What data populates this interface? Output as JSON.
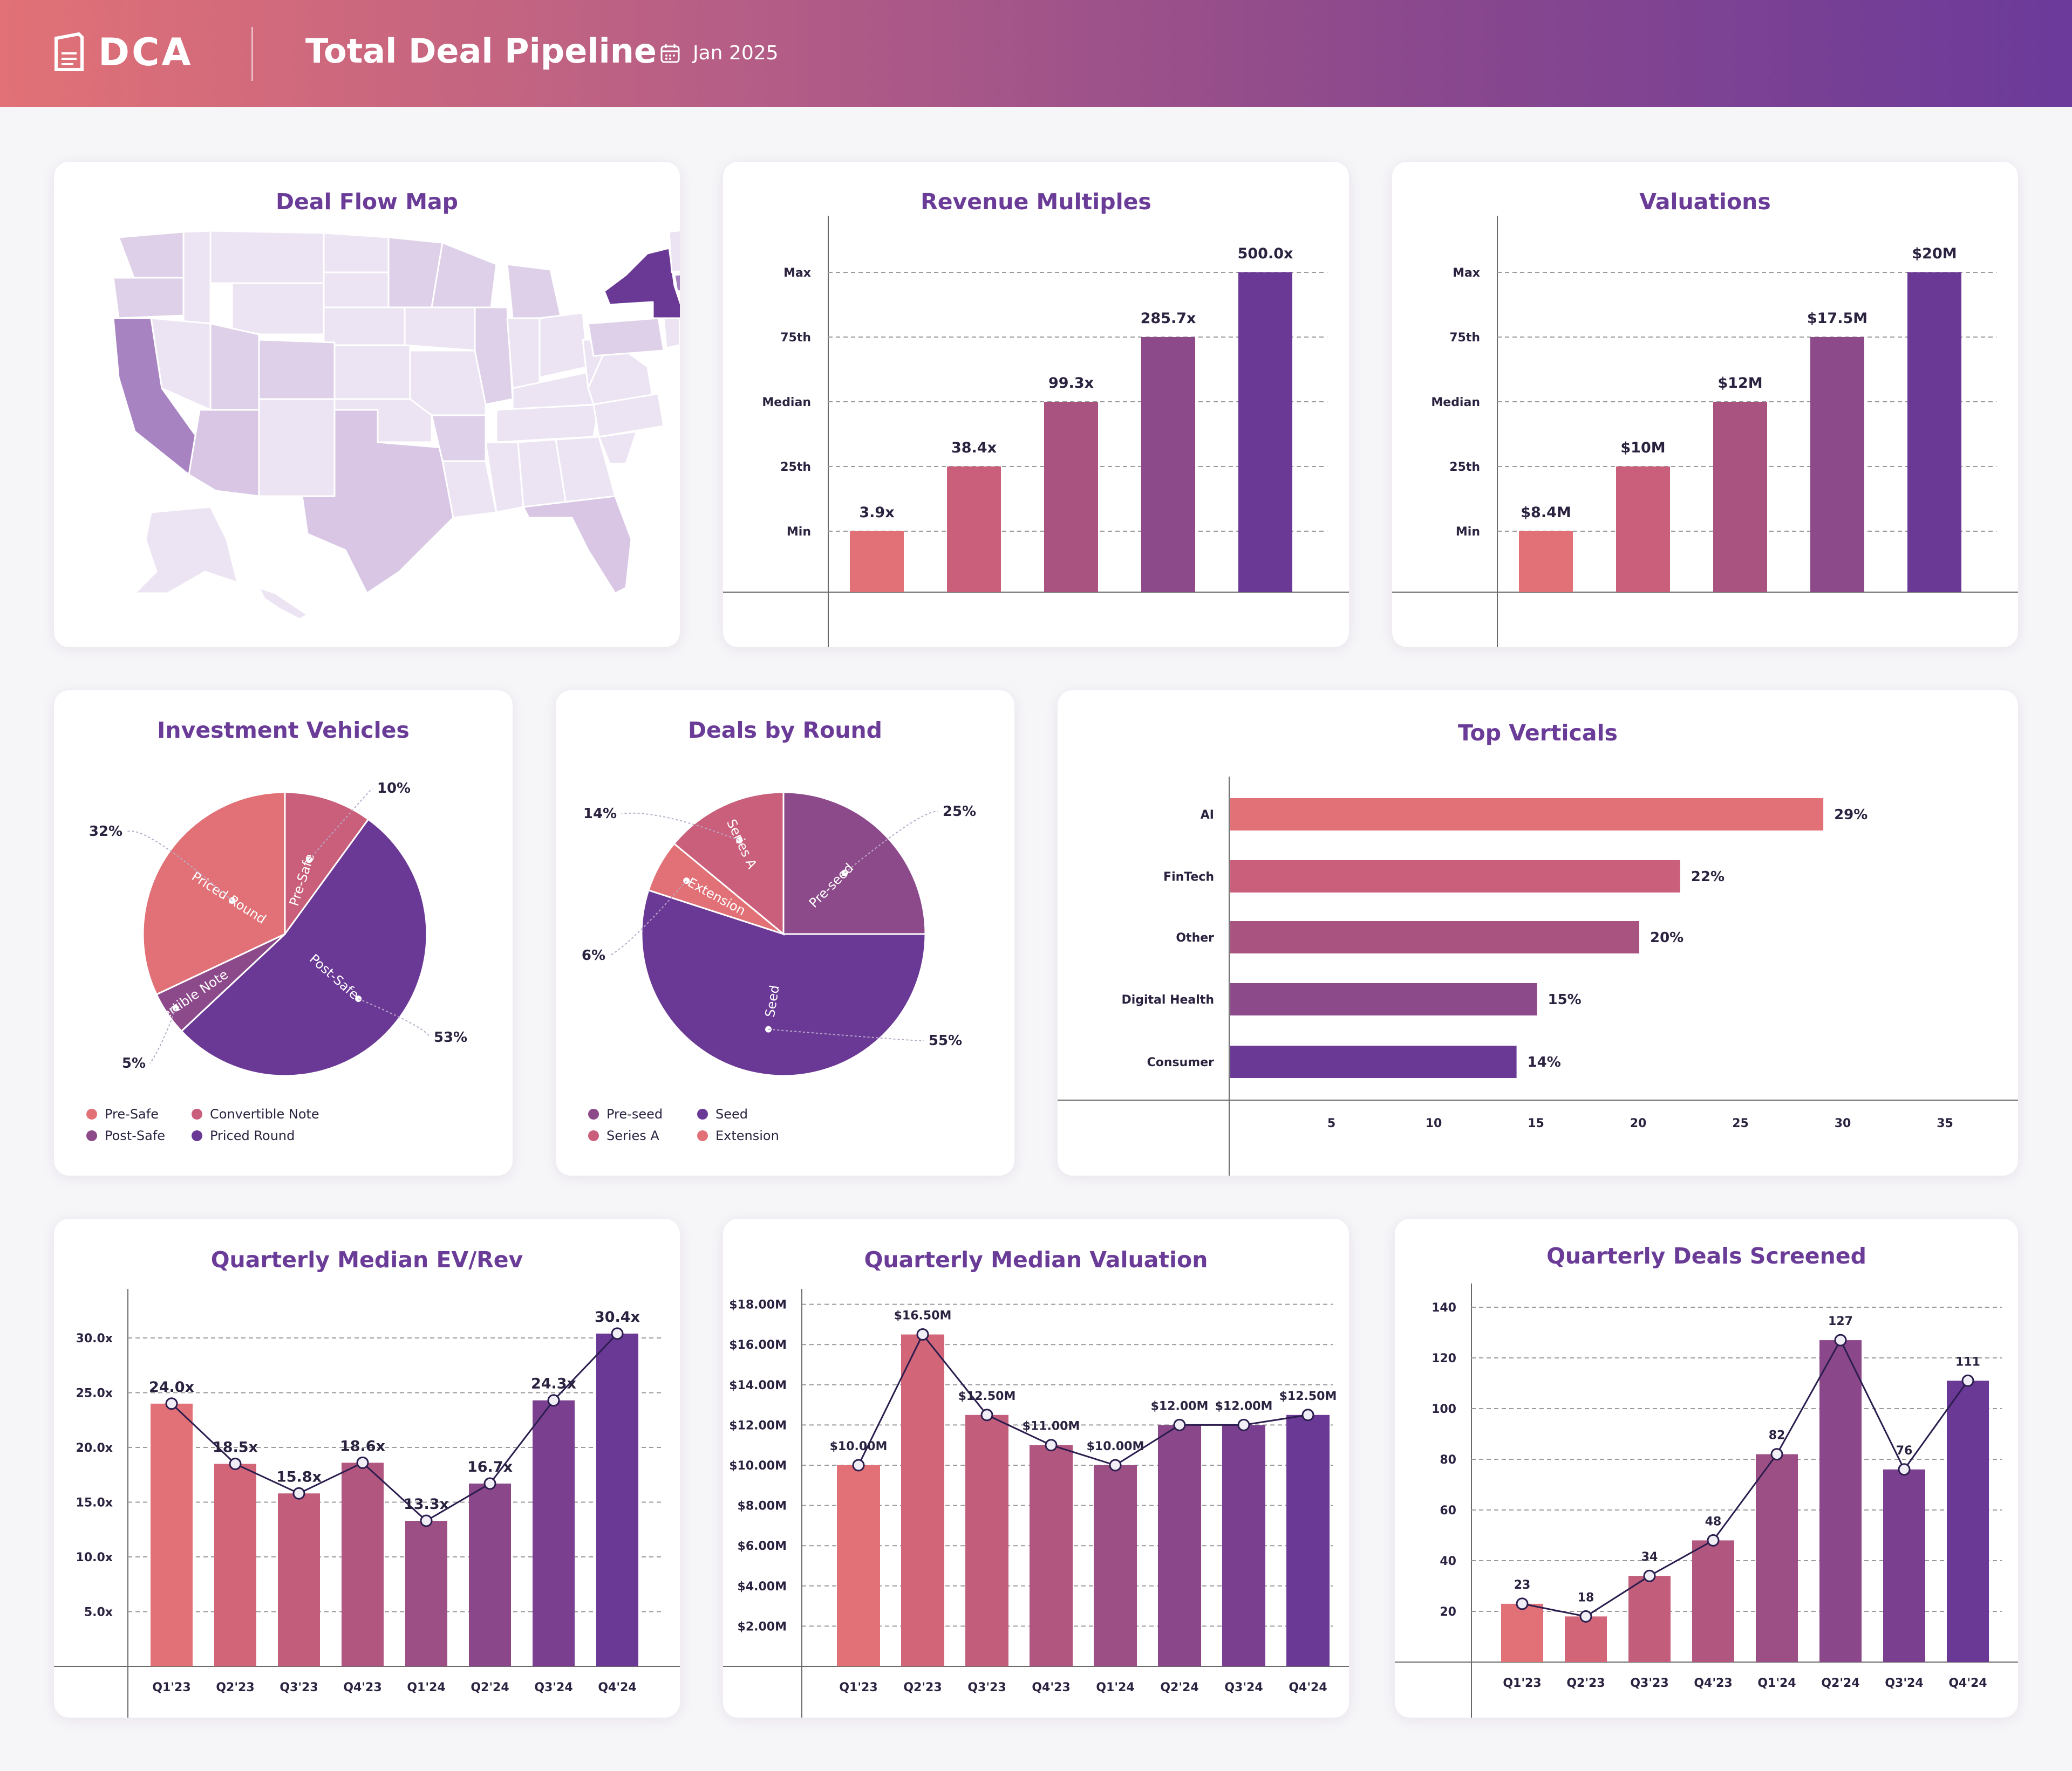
{
  "header": {
    "logo_text": "DCA",
    "title": "Total Deal Pipeline",
    "date": "Jan 2025"
  },
  "colors": {
    "c1": "#e17176",
    "c2": "#c95f7a",
    "c3": "#a85380",
    "c4": "#8c4a8a",
    "c5": "#6a3895",
    "map_dark": "#6a3895",
    "map_mid": "#a783c2",
    "map_light": "#d8c6e4",
    "map_pale": "#ece4f2"
  },
  "map_card": {
    "title": "Deal Flow Map"
  },
  "revenue_multiples": {
    "title": "Revenue Multiples",
    "chart_data": {
      "type": "bar",
      "categories": [
        "Min",
        "25th",
        "Median",
        "75th",
        "Max"
      ],
      "values": [
        3.9,
        38.4,
        99.3,
        285.7,
        500.0
      ],
      "labels": [
        "3.9x",
        "38.4x",
        "99.3x",
        "285.7x",
        "500.0x"
      ]
    }
  },
  "valuations": {
    "title": "Valuations",
    "chart_data": {
      "type": "bar",
      "categories": [
        "Min",
        "25th",
        "Median",
        "75th",
        "Max"
      ],
      "values": [
        8.4,
        10,
        12,
        17.5,
        20
      ],
      "labels": [
        "$8.4M",
        "$10M",
        "$12M",
        "$17.5M",
        "$20M"
      ]
    }
  },
  "investment_vehicles": {
    "title": "Investment Vehicles",
    "chart_data": {
      "type": "pie",
      "slices": [
        {
          "name": "Pre-Safe",
          "value": 10,
          "label": "10%"
        },
        {
          "name": "Post-Safe",
          "value": 53,
          "label": "53%"
        },
        {
          "name": "Convertible Note",
          "value": 5,
          "label": "5%"
        },
        {
          "name": "Priced Round",
          "value": 32,
          "label": "32%"
        }
      ]
    },
    "legend": [
      "Pre-Safe",
      "Convertible Note",
      "Post-Safe",
      "Priced Round"
    ]
  },
  "deals_by_round": {
    "title": "Deals by Round",
    "chart_data": {
      "type": "pie",
      "slices": [
        {
          "name": "Pre-seed",
          "value": 25,
          "label": "25%"
        },
        {
          "name": "Seed",
          "value": 55,
          "label": "55%"
        },
        {
          "name": "Extension",
          "value": 6,
          "label": "6%"
        },
        {
          "name": "Series A",
          "value": 14,
          "label": "14%"
        }
      ]
    },
    "legend": [
      "Pre-seed",
      "Seed",
      "Series A",
      "Extension"
    ]
  },
  "top_verticals": {
    "title": "Top Verticals",
    "chart_data": {
      "type": "bar",
      "orientation": "horizontal",
      "categories": [
        "AI",
        "FinTech",
        "Other",
        "Digital Health",
        "Consumer"
      ],
      "values": [
        29,
        22,
        20,
        15,
        14
      ],
      "labels": [
        "29%",
        "22%",
        "20%",
        "15%",
        "14%"
      ],
      "x_ticks": [
        "5",
        "10",
        "15",
        "20",
        "25",
        "30",
        "35"
      ],
      "xlim": [
        0,
        38
      ]
    }
  },
  "ev_rev": {
    "title": "Quarterly Median EV/Rev",
    "chart_data": {
      "type": "bar",
      "categories": [
        "Q1'23",
        "Q2'23",
        "Q3'23",
        "Q4'23",
        "Q1'24",
        "Q2'24",
        "Q3'24",
        "Q4'24"
      ],
      "values": [
        24.0,
        18.5,
        15.8,
        18.6,
        13.3,
        16.7,
        24.3,
        30.4
      ],
      "labels": [
        "24.0x",
        "18.5x",
        "15.8x",
        "18.6x",
        "13.3x",
        "16.7x",
        "24.3x",
        "30.4x"
      ],
      "y_ticks": [
        "5.0x",
        "10.0x",
        "15.0x",
        "20.0x",
        "25.0x",
        "30.0x"
      ],
      "ylim": [
        0,
        33
      ]
    }
  },
  "median_valuation": {
    "title": "Quarterly Median Valuation",
    "chart_data": {
      "type": "bar",
      "categories": [
        "Q1'23",
        "Q2'23",
        "Q3'23",
        "Q4'23",
        "Q1'24",
        "Q2'24",
        "Q3'24",
        "Q4'24"
      ],
      "values": [
        10.0,
        16.5,
        12.5,
        11.0,
        10.0,
        12.0,
        12.0,
        12.5
      ],
      "labels": [
        "$10.00M",
        "$16.50M",
        "$12.50M",
        "$11.00M",
        "$10.00M",
        "$12.00M",
        "$12.00M",
        "$12.50M"
      ],
      "y_ticks": [
        "$2.00M",
        "$4.00M",
        "$6.00M",
        "$8.00M",
        "$10.00M",
        "$12.00M",
        "$14.00M",
        "$16.00M",
        "$18.00M"
      ],
      "ylim": [
        0,
        18
      ]
    }
  },
  "deals_screened": {
    "title": "Quarterly Deals Screened",
    "chart_data": {
      "type": "bar",
      "categories": [
        "Q1'23",
        "Q2'23",
        "Q3'23",
        "Q4'23",
        "Q1'24",
        "Q2'24",
        "Q3'24",
        "Q4'24"
      ],
      "values": [
        23,
        18,
        34,
        48,
        82,
        127,
        76,
        111
      ],
      "labels": [
        "23",
        "18",
        "34",
        "48",
        "82",
        "127",
        "76",
        "111"
      ],
      "y_ticks": [
        "20",
        "40",
        "60",
        "80",
        "100",
        "120",
        "140"
      ],
      "ylim": [
        0,
        140
      ]
    }
  }
}
